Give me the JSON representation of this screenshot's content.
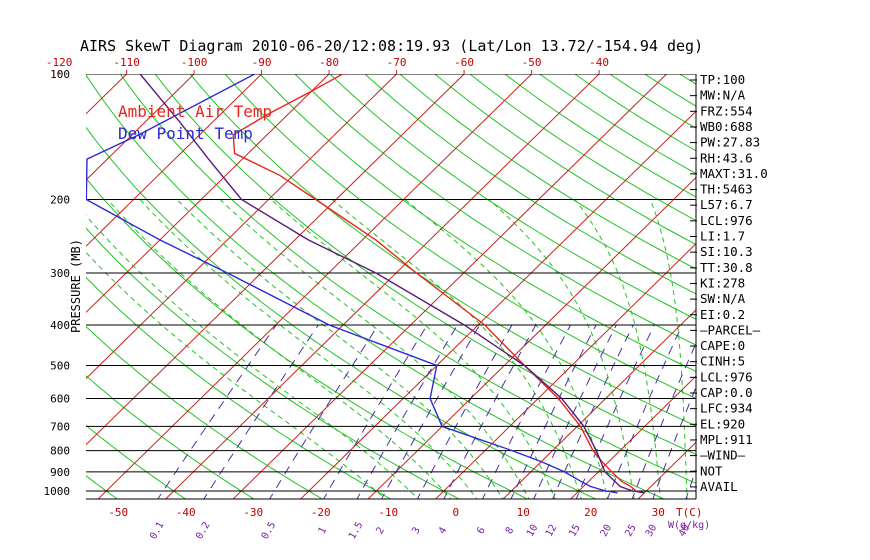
{
  "title": "AIRS SkewT Diagram 2010-06-20/12:08:19.93 (Lat/Lon 13.72/-154.94 deg)",
  "ylabel": "PRESSURE (MB)",
  "legend": {
    "ambient": {
      "label": "Ambient Air Temp",
      "color": "#e8261c"
    },
    "dewpoint": {
      "label": "Dew Point Temp",
      "color": "#2a2ad6"
    }
  },
  "colors": {
    "isotherm": "#c8221a",
    "dry_adiabat": "#22c322",
    "moist_adiabat": "#22c322",
    "mixing_ratio": "#4a2fa0",
    "parcel": "#5a1a7a",
    "isobar": "#000000"
  },
  "tick_labels": {
    "pressure": [
      "100",
      "200",
      "300",
      "400",
      "500",
      "600",
      "700",
      "800",
      "900",
      "1000"
    ],
    "temp_top": [
      "-120",
      "-110",
      "-100",
      "-90",
      "-80",
      "-70",
      "-60",
      "-50",
      "-40"
    ],
    "temp_bottom": [
      "-50",
      "-40",
      "-30",
      "-20",
      "-10",
      "0",
      "10",
      "20",
      "30"
    ],
    "temp_bottom_unit": "T(C)",
    "mixing_ratio": [
      "0.1",
      "0.2",
      "0.5",
      "1",
      "1.5",
      "2",
      "3",
      "4",
      "6",
      "8",
      "10",
      "12",
      "15",
      "20",
      "25",
      "30",
      "40"
    ],
    "mixing_ratio_unit": "W(g/kg)"
  },
  "stats": [
    "TP:100",
    "MW:N/A",
    "FRZ:554",
    "WB0:688",
    "PW:27.83",
    "RH:43.6",
    "MAXT:31.0",
    "TH:5463",
    "L57:6.7",
    "LCL:976",
    "LI:1.7",
    "SI:10.3",
    "TT:30.8",
    "KI:278",
    "SW:N/A",
    "EI:0.2",
    "—PARCEL—",
    "CAPE:0",
    "CINH:5",
    "LCL:976",
    "CAP:0.0",
    "LFC:934",
    "EL:920",
    "MPL:911",
    "—WIND—",
    "NOT",
    "AVAIL"
  ],
  "chart_data": {
    "type": "line",
    "title": "AIRS SkewT Diagram 2010-06-20/12:08:19.93 (Lat/Lon 13.72/-154.94 deg)",
    "ylabel": "PRESSURE (MB)",
    "y_scale": "log",
    "ylim": [
      1050,
      100
    ],
    "xlim_temp_at_bottom": [
      -53,
      34
    ],
    "pressure_ticks": [
      100,
      200,
      300,
      400,
      500,
      600,
      700,
      800,
      900,
      1000
    ],
    "isotherms_C": [
      -160,
      -150,
      -140,
      -130,
      -120,
      -110,
      -100,
      -90,
      -80,
      -70,
      -60,
      -50,
      -40,
      -30,
      -20,
      -10,
      0,
      10,
      20,
      30,
      40
    ],
    "dry_adiabats_C": [
      -100,
      -90,
      -80,
      -70,
      -60,
      -50,
      -40,
      -30,
      -20,
      -10,
      0,
      10,
      20,
      30,
      40,
      50,
      60,
      70,
      80,
      90,
      100,
      110,
      120,
      130,
      140,
      150,
      160,
      170,
      180,
      190,
      200
    ],
    "moist_adiabats_C": [
      -10,
      -5,
      0,
      4,
      8,
      12,
      16,
      20,
      24,
      28,
      32,
      36
    ],
    "mixing_ratios_gkg": [
      0.1,
      0.2,
      0.5,
      1,
      1.5,
      2,
      3,
      4,
      6,
      8,
      10,
      12,
      15,
      20,
      25,
      30,
      40
    ],
    "series": [
      {
        "name": "Ambient Air Temp",
        "points": [
          {
            "p": 100,
            "t": -78
          },
          {
            "p": 110,
            "t": -80
          },
          {
            "p": 125,
            "t": -83
          },
          {
            "p": 140,
            "t": -85
          },
          {
            "p": 155,
            "t": -82
          },
          {
            "p": 175,
            "t": -72
          },
          {
            "p": 200,
            "t": -63
          },
          {
            "p": 250,
            "t": -48
          },
          {
            "p": 300,
            "t": -37
          },
          {
            "p": 400,
            "t": -19
          },
          {
            "p": 500,
            "t": -7
          },
          {
            "p": 600,
            "t": 3
          },
          {
            "p": 700,
            "t": 10.5
          },
          {
            "p": 800,
            "t": 16
          },
          {
            "p": 850,
            "t": 19
          },
          {
            "p": 900,
            "t": 22
          },
          {
            "p": 950,
            "t": 25
          },
          {
            "p": 975,
            "t": 27
          },
          {
            "p": 1000,
            "t": 28.5
          },
          {
            "p": 1010,
            "t": 30
          }
        ]
      },
      {
        "name": "Dew Point Temp",
        "points": [
          {
            "p": 100,
            "t": -91
          },
          {
            "p": 140,
            "t": -99
          },
          {
            "p": 160,
            "t": -103
          },
          {
            "p": 200,
            "t": -97
          },
          {
            "p": 250,
            "t": -80
          },
          {
            "p": 300,
            "t": -65
          },
          {
            "p": 400,
            "t": -42
          },
          {
            "p": 500,
            "t": -20
          },
          {
            "p": 600,
            "t": -16
          },
          {
            "p": 700,
            "t": -10
          },
          {
            "p": 800,
            "t": 4
          },
          {
            "p": 850,
            "t": 10
          },
          {
            "p": 900,
            "t": 15
          },
          {
            "p": 950,
            "t": 19
          },
          {
            "p": 975,
            "t": 21
          },
          {
            "p": 1000,
            "t": 24
          },
          {
            "p": 1010,
            "t": 26
          }
        ]
      },
      {
        "name": "parcel",
        "points": [
          {
            "p": 100,
            "t": -108
          },
          {
            "p": 130,
            "t": -95
          },
          {
            "p": 160,
            "t": -85
          },
          {
            "p": 200,
            "t": -74
          },
          {
            "p": 250,
            "t": -58
          },
          {
            "p": 300,
            "t": -43
          },
          {
            "p": 400,
            "t": -22
          },
          {
            "p": 500,
            "t": -7
          },
          {
            "p": 600,
            "t": 3.5
          },
          {
            "p": 700,
            "t": 11
          },
          {
            "p": 800,
            "t": 16.5
          },
          {
            "p": 900,
            "t": 21
          },
          {
            "p": 950,
            "t": 24
          },
          {
            "p": 976,
            "t": 25.5
          },
          {
            "p": 1000,
            "t": 28
          },
          {
            "p": 1010,
            "t": 30
          }
        ]
      }
    ]
  }
}
